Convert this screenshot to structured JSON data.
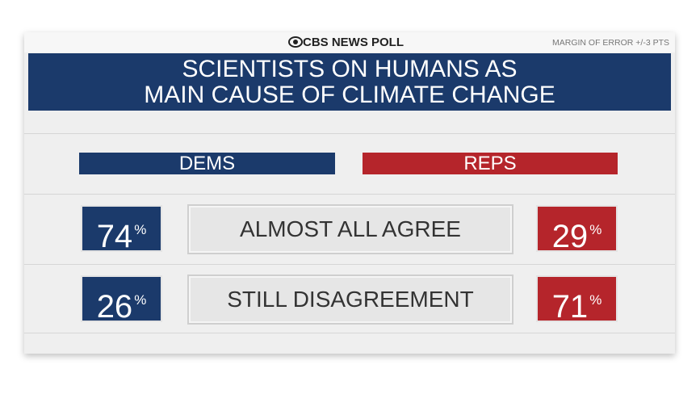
{
  "source": "CBS NEWS POLL",
  "margin_of_error": "MARGIN OF ERROR +/-3 PTS",
  "title": [
    "SCIENTISTS ON HUMANS AS",
    "MAIN CAUSE OF CLIMATE CHANGE"
  ],
  "columns": [
    "DEMS",
    "REPS"
  ],
  "rows": [
    {
      "label": "ALMOST ALL AGREE",
      "dems": {
        "number": "74",
        "unit": "%"
      },
      "reps": {
        "number": "29",
        "unit": "%"
      }
    },
    {
      "label": "STILL DISAGREEMENT",
      "dems": {
        "number": "26",
        "unit": "%"
      },
      "reps": {
        "number": "71",
        "unit": "%"
      }
    }
  ]
}
